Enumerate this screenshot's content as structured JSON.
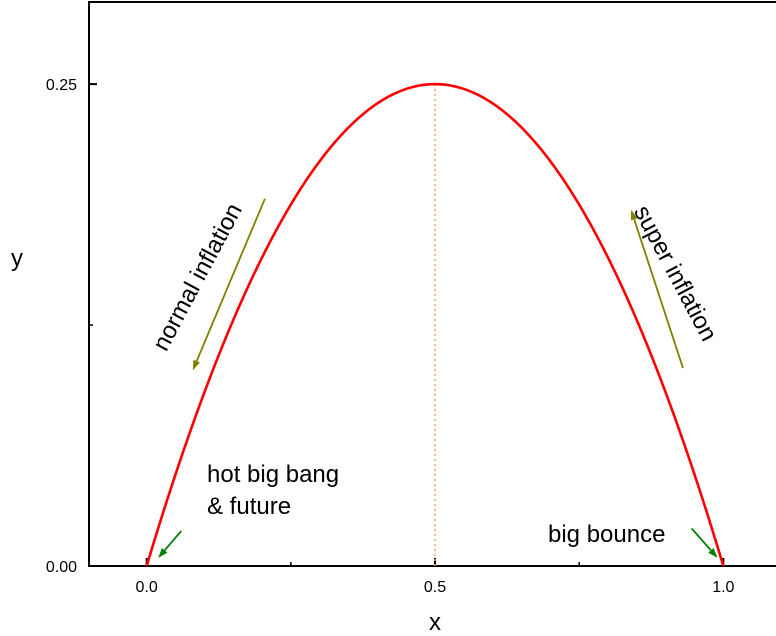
{
  "chart_data": {
    "type": "line",
    "title": "",
    "xlabel": "x",
    "ylabel": "y",
    "xlim": [
      -0.1,
      1.1
    ],
    "ylim": [
      0,
      0.2926
    ],
    "xticks": [
      {
        "value": 0.0,
        "label": "0.0"
      },
      {
        "value": 0.5,
        "label": "0.5"
      },
      {
        "value": 1.0,
        "label": "1.0"
      }
    ],
    "yticks": [
      {
        "value": 0.0,
        "label": "0.00"
      },
      {
        "value": 0.25,
        "label": "0.25"
      }
    ],
    "grid": false,
    "series": [
      {
        "function": "y = x(1 - x)",
        "color": "#ff0000",
        "x": [
          0.0,
          0.05,
          0.1,
          0.15,
          0.2,
          0.25,
          0.3,
          0.35,
          0.4,
          0.45,
          0.5,
          0.55,
          0.6,
          0.65,
          0.7,
          0.75,
          0.8,
          0.85,
          0.9,
          0.95,
          1.0
        ],
        "y": [
          0.0,
          0.0475,
          0.09,
          0.1275,
          0.16,
          0.1875,
          0.21,
          0.2275,
          0.24,
          0.2475,
          0.25,
          0.2475,
          0.24,
          0.2275,
          0.21,
          0.1875,
          0.16,
          0.1275,
          0.09,
          0.0475,
          0.0
        ]
      }
    ],
    "reference_line": {
      "x": 0.5,
      "y_from": 0.0,
      "y_to": 0.25,
      "style": "dotted",
      "color": "#f4a460"
    },
    "annotations": [
      {
        "id": "normal",
        "text": "normal inflation",
        "anchor": {
          "x": 0.1,
          "y": 0.148
        },
        "rotation": -62
      },
      {
        "id": "super",
        "text": "super inflation",
        "anchor": {
          "x": 0.905,
          "y": 0.15
        },
        "rotation": 62
      },
      {
        "id": "hot",
        "lines": [
          "hot big bang",
          "& future"
        ]
      },
      {
        "id": "bounce",
        "text": "big bounce"
      }
    ],
    "arrows": [
      {
        "name": "normal-inflation-arrow",
        "color": "#808000",
        "from": {
          "x": 0.205,
          "y": 0.1905
        },
        "to": {
          "x": 0.08,
          "y": 0.1015
        }
      },
      {
        "name": "super-inflation-arrow",
        "color": "#808000",
        "from": {
          "x": 0.93,
          "y": 0.1027
        },
        "to": {
          "x": 0.84,
          "y": 0.1848
        }
      },
      {
        "name": "hot-big-bang-arrow",
        "color": "#008000",
        "from": {
          "x": 0.06,
          "y": 0.0182
        },
        "to": {
          "x": 0.02,
          "y": 0.0042
        }
      },
      {
        "name": "big-bounce-arrow",
        "color": "#008000",
        "from": {
          "x": 0.945,
          "y": 0.0195
        },
        "to": {
          "x": 0.99,
          "y": 0.0042
        }
      }
    ]
  }
}
